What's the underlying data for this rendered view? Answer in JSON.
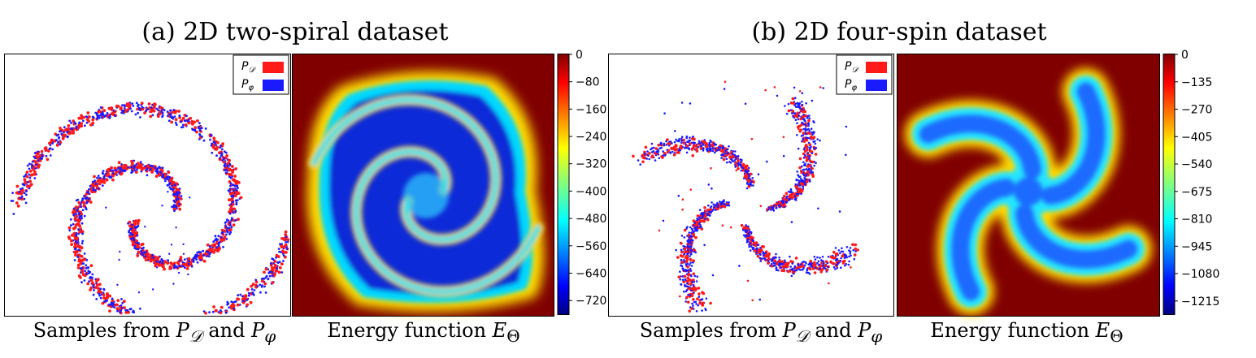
{
  "figure": {
    "panel_a_title": "(a) 2D two-spiral dataset",
    "panel_b_title": "(b) 2D four-spin dataset",
    "caption_samples_prefix": "Samples from ",
    "caption_samples_mid": " and ",
    "caption_energy_prefix": "Energy function ",
    "sym_pd": "P",
    "sym_pd_sub": "𝒟",
    "sym_pphi": "P",
    "sym_pphi_sub": "φ",
    "sym_e": "E",
    "sym_e_sub": "Θ"
  },
  "colors": {
    "data_points": "#ff1a1a",
    "model_points": "#1a1aff",
    "energy_background": "#800000"
  },
  "chart_data": [
    {
      "type": "scatter",
      "panel": "a",
      "title": "(a) 2D two-spiral dataset",
      "xlabel": "Samples from P_D and P_phi",
      "legend": [
        "P_D",
        "P_phi"
      ],
      "legend_position": "top-right",
      "series": [
        {
          "name": "P_D",
          "color": "#ff1a1a",
          "shape": "two-spiral",
          "arms": 2
        },
        {
          "name": "P_phi",
          "color": "#1a1aff",
          "shape": "two-spiral",
          "arms": 2
        }
      ],
      "axes_ticks": "none"
    },
    {
      "type": "heatmap",
      "panel": "a",
      "xlabel": "Energy function E_Theta",
      "colormap": "jet",
      "colorbar_ticks": [
        0,
        -80,
        -160,
        -240,
        -320,
        -400,
        -480,
        -560,
        -640,
        -720
      ],
      "colorbar_range": [
        -760,
        0
      ]
    },
    {
      "type": "scatter",
      "panel": "b",
      "title": "(b) 2D four-spin dataset",
      "xlabel": "Samples from P_D and P_phi",
      "legend": [
        "P_D",
        "P_phi"
      ],
      "legend_position": "top-right",
      "series": [
        {
          "name": "P_D",
          "color": "#ff1a1a",
          "shape": "four-spin",
          "arms": 4
        },
        {
          "name": "P_phi",
          "color": "#1a1aff",
          "shape": "four-spin",
          "arms": 4
        }
      ],
      "axes_ticks": "none"
    },
    {
      "type": "heatmap",
      "panel": "b",
      "xlabel": "Energy function E_Theta",
      "colormap": "jet",
      "colorbar_ticks": [
        0,
        -135,
        -270,
        -405,
        -540,
        -675,
        -810,
        -945,
        -1080,
        -1215
      ],
      "colorbar_range": [
        -1280,
        0
      ]
    }
  ]
}
